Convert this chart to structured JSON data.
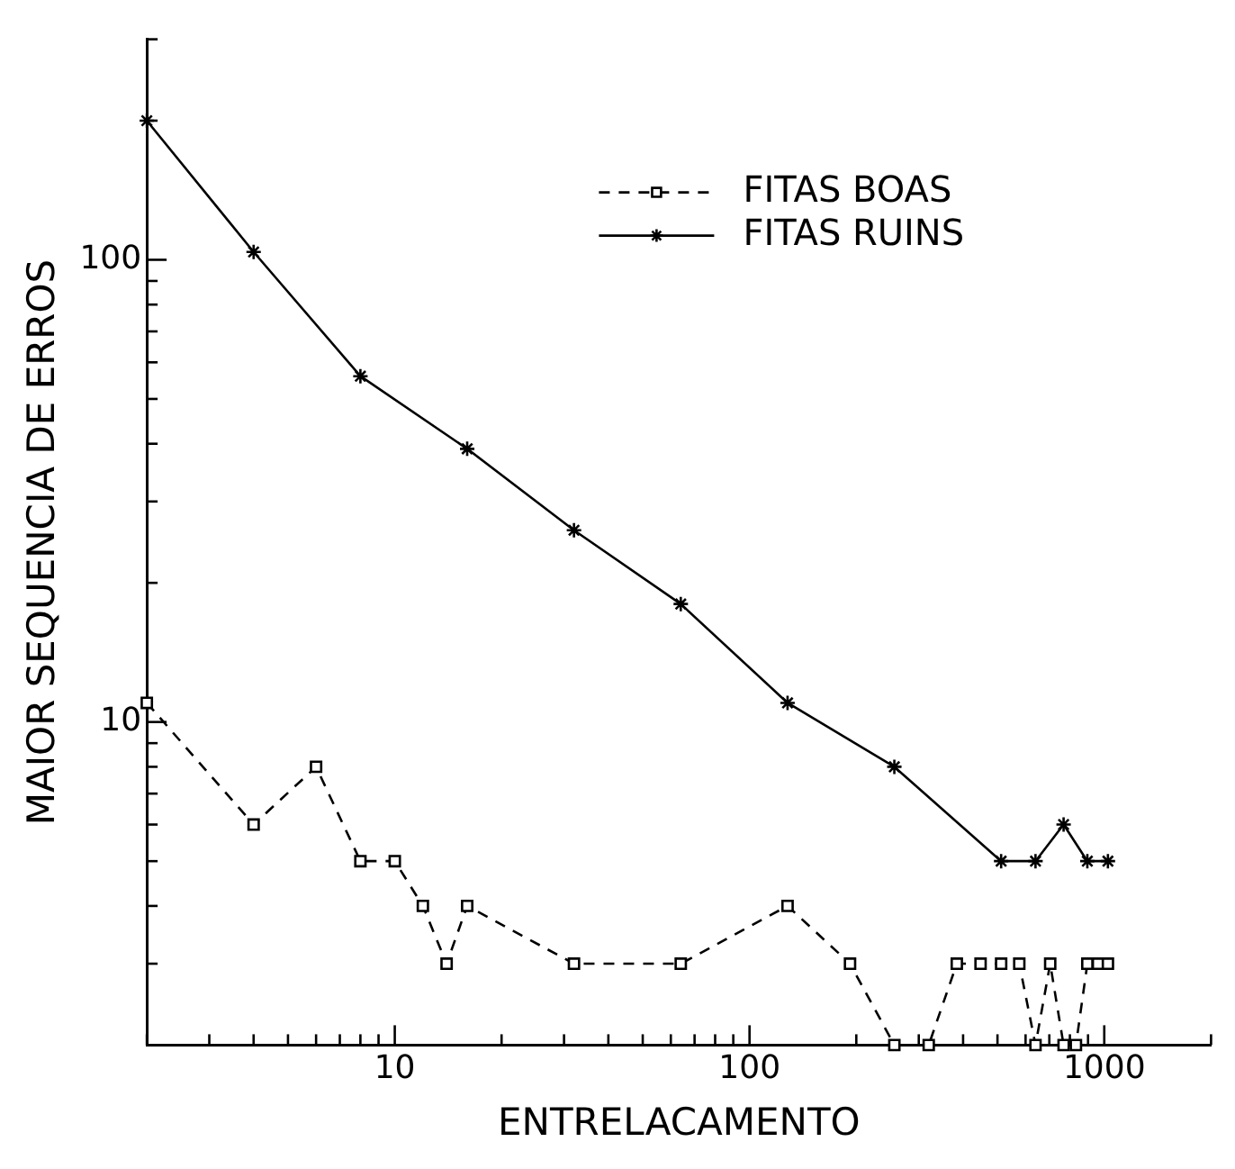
{
  "chart_data": {
    "type": "line",
    "xlabel": "ENTRELACAMENTO",
    "ylabel": "MAIOR SEQUENCIA DE ERROS",
    "log": "xy",
    "grid": false,
    "legend": "top right",
    "xlim": [
      2,
      2000
    ],
    "ylim": [
      2,
      300
    ],
    "xticks": [
      {
        "value": 2,
        "label": null
      },
      {
        "value": 3,
        "label": null
      },
      {
        "value": 4,
        "label": null
      },
      {
        "value": 5,
        "label": null
      },
      {
        "value": 6,
        "label": null
      },
      {
        "value": 7,
        "label": null
      },
      {
        "value": 8,
        "label": null
      },
      {
        "value": 9,
        "label": null
      },
      10,
      {
        "value": 20,
        "label": null
      },
      {
        "value": 30,
        "label": null
      },
      {
        "value": 40,
        "label": null
      },
      {
        "value": 50,
        "label": null
      },
      {
        "value": 60,
        "label": null
      },
      {
        "value": 70,
        "label": null
      },
      {
        "value": 80,
        "label": null
      },
      {
        "value": 90,
        "label": null
      },
      100,
      {
        "value": 200,
        "label": null
      },
      {
        "value": 300,
        "label": null
      },
      {
        "value": 400,
        "label": null
      },
      {
        "value": 500,
        "label": null
      },
      {
        "value": 600,
        "label": null
      },
      {
        "value": 700,
        "label": null
      },
      {
        "value": 800,
        "label": null
      },
      {
        "value": 900,
        "label": null
      },
      1000,
      {
        "value": 2000,
        "label": null
      }
    ],
    "yticks": [
      {
        "value": 2,
        "label": null
      },
      {
        "value": 3,
        "label": null
      },
      {
        "value": 4,
        "label": null
      },
      {
        "value": 5,
        "label": null
      },
      {
        "value": 6,
        "label": null
      },
      {
        "value": 7,
        "label": null
      },
      {
        "value": 8,
        "label": null
      },
      {
        "value": 9,
        "label": null
      },
      10,
      {
        "value": 20,
        "label": null
      },
      {
        "value": 30,
        "label": null
      },
      {
        "value": 40,
        "label": null
      },
      {
        "value": 50,
        "label": null
      },
      {
        "value": 60,
        "label": null
      },
      {
        "value": 70,
        "label": null
      },
      {
        "value": 80,
        "label": null
      },
      {
        "value": 90,
        "label": null
      },
      100,
      {
        "value": 200,
        "label": null
      },
      {
        "value": 300,
        "label": null
      }
    ],
    "series": [
      {
        "name": "FITAS BOAS",
        "color": "#000000",
        "marker": "square",
        "line_style": "dashed",
        "x": [
          2,
          4,
          6,
          8,
          10,
          12,
          14,
          16,
          32,
          64,
          128,
          192,
          256,
          320,
          384,
          448,
          512,
          576,
          640,
          704,
          768,
          832,
          896,
          960,
          1024
        ],
        "values": [
          11,
          6,
          8,
          5,
          5,
          4,
          3,
          4,
          3,
          3,
          4,
          3,
          2,
          2,
          3,
          3,
          3,
          3,
          2,
          3,
          2,
          2,
          3,
          3,
          3
        ]
      },
      {
        "name": "FITAS RUINS",
        "color": "#000000",
        "marker": "cross",
        "line_style": "solid",
        "x": [
          2,
          4,
          8,
          16,
          32,
          64,
          128,
          256,
          512,
          640,
          768,
          896,
          1024
        ],
        "values": [
          200,
          104,
          56,
          39,
          26,
          18,
          11,
          8,
          5,
          5,
          6,
          5,
          5
        ]
      }
    ]
  }
}
